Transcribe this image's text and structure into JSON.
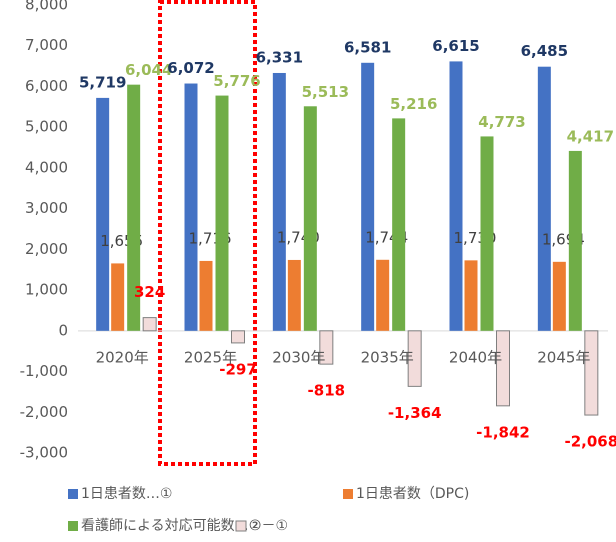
{
  "chart_data": {
    "type": "bar",
    "categories": [
      "2020年",
      "2025年",
      "2030年",
      "2035年",
      "2040年",
      "2045年"
    ],
    "series": [
      {
        "name": "1日患者数…①",
        "color": "#4472c4",
        "label_color": "#1f3864",
        "values": [
          5719,
          6072,
          6331,
          6581,
          6615,
          6485
        ],
        "value_labels": [
          "5,719",
          "6,072",
          "6,331",
          "6,581",
          "6,615",
          "6,485"
        ]
      },
      {
        "name": "1日患者数（DPC)",
        "color": "#ed7d31",
        "label_color": "#404040",
        "values": [
          1655,
          1716,
          1740,
          1744,
          1730,
          1694
        ],
        "value_labels": [
          "1,655",
          "1,716",
          "1,740",
          "1,744",
          "1,730",
          "1,694"
        ]
      },
      {
        "name": "看護師による対応可能数…②",
        "color": "#70ad47",
        "label_color": "#9bbb59",
        "values": [
          6044,
          5776,
          5513,
          5216,
          4773,
          4417
        ],
        "value_labels": [
          "6,044",
          "5,776",
          "5,513",
          "5,216",
          "4,773",
          "4,417"
        ]
      },
      {
        "name": "②－①",
        "color": "#f2dcdb",
        "label_color": "#ff0000",
        "values": [
          324,
          -297,
          -818,
          -1364,
          -1842,
          -2068
        ],
        "value_labels": [
          "324",
          "-297",
          "-818",
          "-1,364",
          "-1,842",
          "-2,068"
        ]
      }
    ],
    "ylim": [
      -3000,
      8000
    ],
    "yticks": [
      {
        "value": -3000,
        "label": "-3,000"
      },
      {
        "value": -2000,
        "label": "-2,000"
      },
      {
        "value": -1000,
        "label": "-1,000"
      },
      0,
      {
        "value": 1000,
        "label": "1,000"
      },
      {
        "value": 2000,
        "label": "2,000"
      },
      {
        "value": 3000,
        "label": "3,000"
      },
      {
        "value": 4000,
        "label": "4,000"
      },
      {
        "value": 5000,
        "label": "5,000"
      },
      {
        "value": 6000,
        "label": "6,000"
      },
      {
        "value": 7000,
        "label": "7,000"
      },
      {
        "value": 8000,
        "label": "8,000"
      }
    ],
    "grid": false
  }
}
